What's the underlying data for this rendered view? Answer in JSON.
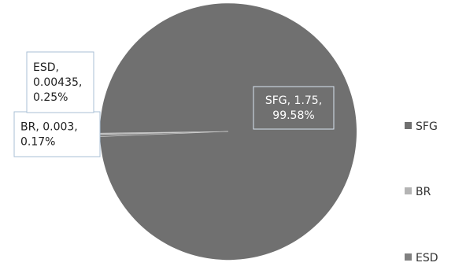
{
  "chart_data": {
    "type": "pie",
    "labels": [
      "SFG",
      "BR",
      "ESD"
    ],
    "values": [
      1.75,
      0.003,
      0.00435
    ],
    "percentages": [
      "99.58%",
      "0.17%",
      "0.25%"
    ],
    "data_labels": [
      [
        "SFG, 1.75,",
        "99.58%"
      ],
      [
        "BR, 0.003,",
        "0.17%"
      ],
      [
        "ESD,",
        "0.00435,",
        "0.25%"
      ]
    ],
    "colors": [
      "#707070",
      "#b4b4b4",
      "#808080"
    ],
    "legend": {
      "position": "right",
      "entries": [
        "SFG",
        "BR",
        "ESD"
      ]
    }
  }
}
